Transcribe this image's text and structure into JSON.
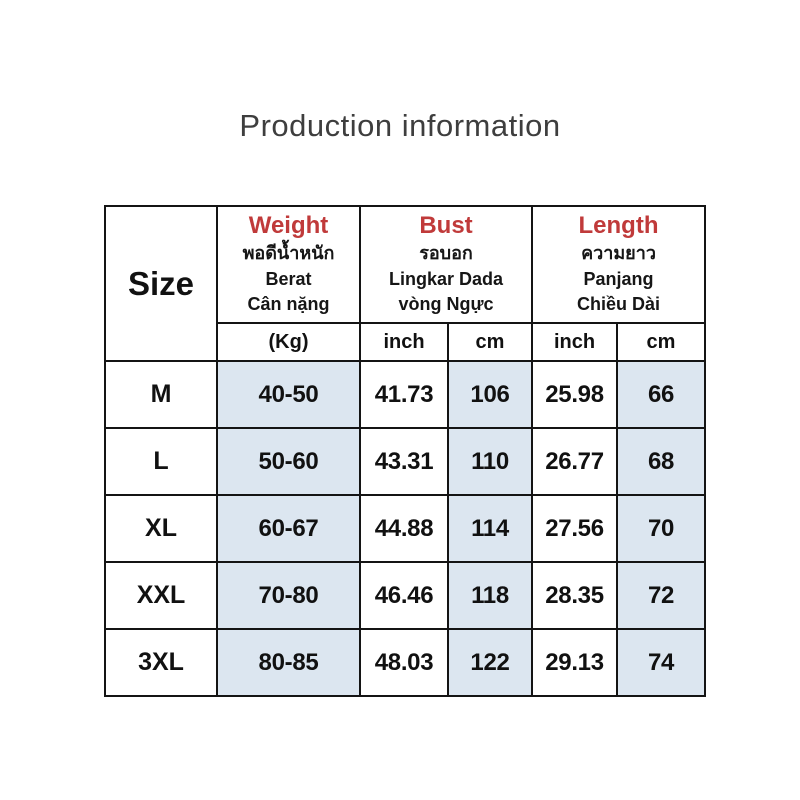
{
  "title": "Production information",
  "colors": {
    "accent_red": "#c03a3a",
    "cell_blue": "#dce6f0",
    "border_black": "#141414",
    "title_gray": "#3e3e3e"
  },
  "table": {
    "size_header": "Size",
    "groups": [
      {
        "en": "Weight",
        "th": "พอดีน้ำหนัก",
        "id": "Berat",
        "vi": "Cân nặng"
      },
      {
        "en": "Bust",
        "th": "รอบอก",
        "id": "Lingkar Dada",
        "vi": "vòng Ngực"
      },
      {
        "en": "Length",
        "th": "ความยาว",
        "id": "Panjang",
        "vi": "Chiều Dài"
      }
    ],
    "unit_row": [
      "(Kg)",
      "inch",
      "cm",
      "inch",
      "cm"
    ],
    "rows": [
      {
        "size": "M",
        "weight_kg": "40-50",
        "bust_inch": "41.73",
        "bust_cm": "106",
        "length_inch": "25.98",
        "length_cm": "66"
      },
      {
        "size": "L",
        "weight_kg": "50-60",
        "bust_inch": "43.31",
        "bust_cm": "110",
        "length_inch": "26.77",
        "length_cm": "68"
      },
      {
        "size": "XL",
        "weight_kg": "60-67",
        "bust_inch": "44.88",
        "bust_cm": "114",
        "length_inch": "27.56",
        "length_cm": "70"
      },
      {
        "size": "XXL",
        "weight_kg": "70-80",
        "bust_inch": "46.46",
        "bust_cm": "118",
        "length_inch": "28.35",
        "length_cm": "72"
      },
      {
        "size": "3XL",
        "weight_kg": "80-85",
        "bust_inch": "48.03",
        "bust_cm": "122",
        "length_inch": "29.13",
        "length_cm": "74"
      }
    ]
  },
  "chart_data": {
    "type": "table",
    "title": "Production information",
    "columns": [
      "Size",
      "Weight (Kg)",
      "Bust inch",
      "Bust cm",
      "Length inch",
      "Length cm"
    ],
    "rows": [
      [
        "M",
        "40-50",
        "41.73",
        "106",
        "25.98",
        "66"
      ],
      [
        "L",
        "50-60",
        "43.31",
        "110",
        "26.77",
        "68"
      ],
      [
        "XL",
        "60-67",
        "44.88",
        "114",
        "27.56",
        "70"
      ],
      [
        "XXL",
        "70-80",
        "46.46",
        "118",
        "28.35",
        "72"
      ],
      [
        "3XL",
        "80-85",
        "48.03",
        "122",
        "29.13",
        "74"
      ]
    ]
  }
}
